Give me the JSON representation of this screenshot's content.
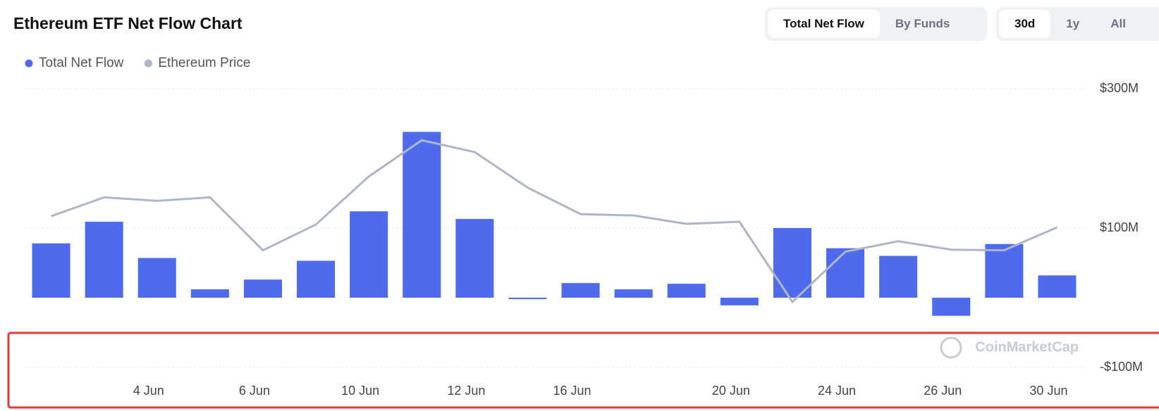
{
  "header": {
    "title": "Ethereum ETF Net Flow Chart",
    "view_tabs": [
      "Total Net Flow",
      "By Funds"
    ],
    "range_tabs": [
      "30d",
      "1y",
      "All"
    ]
  },
  "watermark": "CoinMarketCap",
  "chart_data": {
    "type": "bar",
    "categories": [
      null,
      null,
      "4 Jun",
      null,
      "6 Jun",
      null,
      "10 Jun",
      null,
      "12 Jun",
      null,
      "16 Jun",
      null,
      null,
      "20 Jun",
      null,
      "24 Jun",
      null,
      "26 Jun",
      null,
      "30 Jun"
    ],
    "series": [
      {
        "name": "Total Net Flow",
        "color": "#4f6bed",
        "values": [
          78,
          109,
          57,
          12,
          26,
          53,
          124,
          238,
          113,
          -2,
          21,
          12,
          20,
          -11,
          100,
          71,
          60,
          -26,
          77,
          32
        ]
      },
      {
        "name": "Ethereum Price",
        "type": "line",
        "color": "#b0b5c4",
        "values": [
          117,
          144,
          139,
          144,
          68,
          105,
          174,
          226,
          209,
          158,
          120,
          118,
          106,
          109,
          -6,
          66,
          81,
          69,
          68,
          101
        ]
      }
    ],
    "ylim": [
      -100,
      300
    ],
    "yticks": [
      {
        "value": -100,
        "label": "-$100M"
      },
      {
        "value": 100,
        "label": "$100M"
      },
      {
        "value": 300,
        "label": "$300M"
      }
    ],
    "grid": true
  }
}
